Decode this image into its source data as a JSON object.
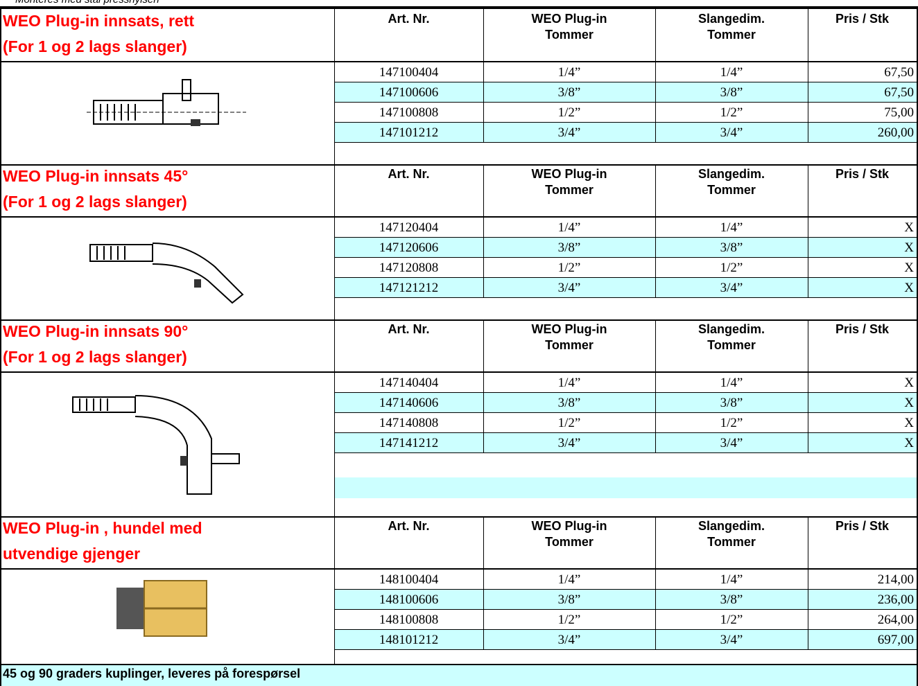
{
  "top_note": "Monteres med stål presshylsen",
  "sections": [
    {
      "title": [
        "WEO Plug-in innsats, rett",
        "(For 1 og 2 lags slanger)"
      ],
      "headers": [
        "Art. Nr.",
        "WEO Plug-in\nTommer",
        "Slangedim.\nTommer",
        "Pris / Stk"
      ],
      "rows": [
        [
          "147100404",
          "1/4”",
          "1/4”",
          "67,50"
        ],
        [
          "147100606",
          "3/8”",
          "3/8”",
          "67,50"
        ],
        [
          "147100808",
          "1/2”",
          "1/2”",
          "75,00"
        ],
        [
          "147101212",
          "3/4”",
          "3/4”",
          "260,00"
        ]
      ]
    },
    {
      "title": [
        "WEO Plug-in innsats 45°",
        "(For 1 og 2 lags slanger)"
      ],
      "headers": [
        "Art. Nr.",
        "WEO Plug-in\nTommer",
        "Slangedim.\nTommer",
        "Pris / Stk"
      ],
      "rows": [
        [
          "147120404",
          "1/4”",
          "1/4”",
          "X"
        ],
        [
          "147120606",
          "3/8”",
          "3/8”",
          "X"
        ],
        [
          "147120808",
          "1/2”",
          "1/2”",
          "X"
        ],
        [
          "147121212",
          "3/4”",
          "3/4”",
          "X"
        ]
      ]
    },
    {
      "title": [
        "WEO Plug-in innsats 90°",
        "(For 1 og 2 lags slanger)"
      ],
      "headers": [
        "Art. Nr.",
        "WEO Plug-in\nTommer",
        "Slangedim.\nTommer",
        "Pris / Stk"
      ],
      "rows": [
        [
          "147140404",
          "1/4”",
          "1/4”",
          "X"
        ],
        [
          "147140606",
          "3/8”",
          "3/8”",
          "X"
        ],
        [
          "147140808",
          "1/2”",
          "1/2”",
          "X"
        ],
        [
          "147141212",
          "3/4”",
          "3/4”",
          "X"
        ]
      ]
    },
    {
      "title": [
        "WEO Plug-in , hundel med",
        "utvendige gjenger"
      ],
      "headers": [
        "Art. Nr.",
        "WEO Plug-in\nTommer",
        "Slangedim.\nTommer",
        "Pris / Stk"
      ],
      "rows": [
        [
          "148100404",
          "1/4”",
          "1/4”",
          "214,00"
        ],
        [
          "148100606",
          "3/8”",
          "3/8”",
          "236,00"
        ],
        [
          "148100808",
          "1/2”",
          "1/2”",
          "264,00"
        ],
        [
          "148101212",
          "3/4”",
          "3/4”",
          "697,00"
        ]
      ]
    }
  ],
  "footer": "45 og 90 graders kuplinger, leveres på forespørsel"
}
